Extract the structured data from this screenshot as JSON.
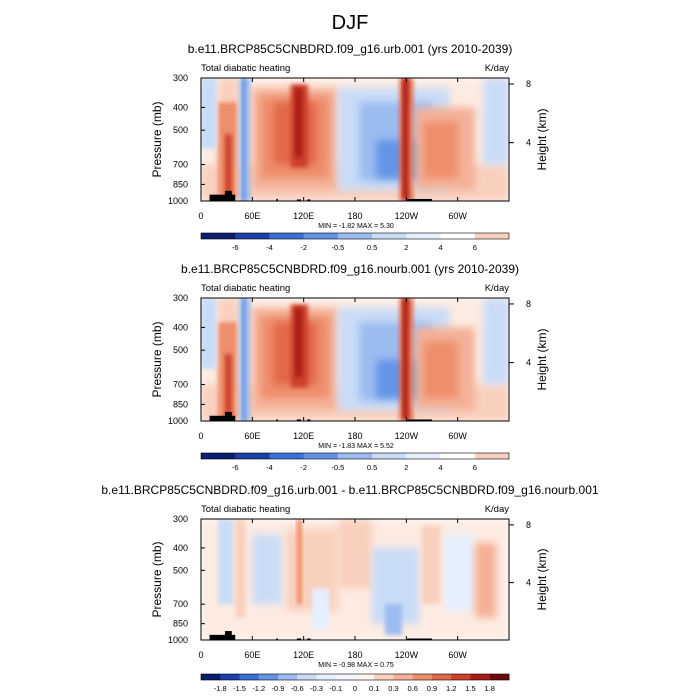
{
  "page_title": "DJF",
  "colors": {
    "cool": [
      "#0a1f6e",
      "#1c3fa8",
      "#3a6fd8",
      "#6494e6",
      "#9bbcf0",
      "#c9dcf7",
      "#e6efff"
    ],
    "warm": [
      "#fdebe2",
      "#f9d0bd",
      "#f4b197",
      "#ee8e6a",
      "#e2674a",
      "#cc3f2c",
      "#a81d17",
      "#6e0a0a"
    ],
    "land": "#000000"
  },
  "chart_data": [
    {
      "type": "heatmap",
      "title": "b.e11.BRCP85C5CNBDRD.f09_g16.urb.001 (yrs 2010-2039)",
      "left_label": "Total diabatic heating",
      "right_label": "K/day",
      "ylabel": "Pressure (mb)",
      "y2label": "Height (km)",
      "x_ticks": [
        "0",
        "60E",
        "120E",
        "180",
        "120W",
        "60W"
      ],
      "x_tick_lons": [
        0,
        60,
        120,
        180,
        240,
        300
      ],
      "y_ticks": [
        "300",
        "400",
        "500",
        "700",
        "850",
        "1000"
      ],
      "y_tick_values": [
        300,
        400,
        500,
        700,
        850,
        1000
      ],
      "y2_ticks": [
        "8",
        "4"
      ],
      "xlim": [
        0,
        360
      ],
      "ylim": [
        1000,
        300
      ],
      "stats": "MIN =  -1.82   MAX =   5.30",
      "max_value": 5.3,
      "min_value": -1.82,
      "colorbar_labels": [
        "-6",
        "-4",
        "-2",
        "-0.5",
        "0.5",
        "2",
        "4",
        "6"
      ]
    },
    {
      "type": "heatmap",
      "title": "b.e11.BRCP85C5CNBDRD.f09_g16.nourb.001 (yrs 2010-2039)",
      "left_label": "Total diabatic heating",
      "right_label": "K/day",
      "ylabel": "Pressure (mb)",
      "y2label": "Height (km)",
      "x_ticks": [
        "0",
        "60E",
        "120E",
        "180",
        "120W",
        "60W"
      ],
      "x_tick_lons": [
        0,
        60,
        120,
        180,
        240,
        300
      ],
      "y_ticks": [
        "300",
        "400",
        "500",
        "700",
        "850",
        "1000"
      ],
      "y_tick_values": [
        300,
        400,
        500,
        700,
        850,
        1000
      ],
      "y2_ticks": [
        "8",
        "4"
      ],
      "xlim": [
        0,
        360
      ],
      "ylim": [
        1000,
        300
      ],
      "stats": "MIN =  -1.83   MAX =   5.52",
      "max_value": 5.52,
      "min_value": -1.83,
      "colorbar_labels": [
        "-6",
        "-4",
        "-2",
        "-0.5",
        "0.5",
        "2",
        "4",
        "6"
      ]
    },
    {
      "type": "heatmap",
      "title": "b.e11.BRCP85C5CNBDRD.f09_g16.urb.001 - b.e11.BRCP85C5CNBDRD.f09_g16.nourb.001",
      "left_label": "Total diabatic heating",
      "right_label": "K/day",
      "ylabel": "Pressure (mb)",
      "y2label": "Height (km)",
      "x_ticks": [
        "0",
        "60E",
        "120E",
        "180",
        "120W",
        "60W"
      ],
      "x_tick_lons": [
        0,
        60,
        120,
        180,
        240,
        300
      ],
      "y_ticks": [
        "300",
        "400",
        "500",
        "700",
        "850",
        "1000"
      ],
      "y_tick_values": [
        300,
        400,
        500,
        700,
        850,
        1000
      ],
      "y2_ticks": [
        "8",
        "4"
      ],
      "xlim": [
        0,
        360
      ],
      "ylim": [
        1000,
        300
      ],
      "stats": "MIN =  -0.98   MAX =   0.75",
      "max_value": 0.75,
      "min_value": -0.98,
      "colorbar_labels": [
        "-1.8",
        "-1.5",
        "-1.2",
        "-0.9",
        "-0.6",
        "-0.3",
        "-0.1",
        "0",
        "0.1",
        "0.3",
        "0.6",
        "0.9",
        "1.2",
        "1.5",
        "1.8"
      ]
    }
  ]
}
